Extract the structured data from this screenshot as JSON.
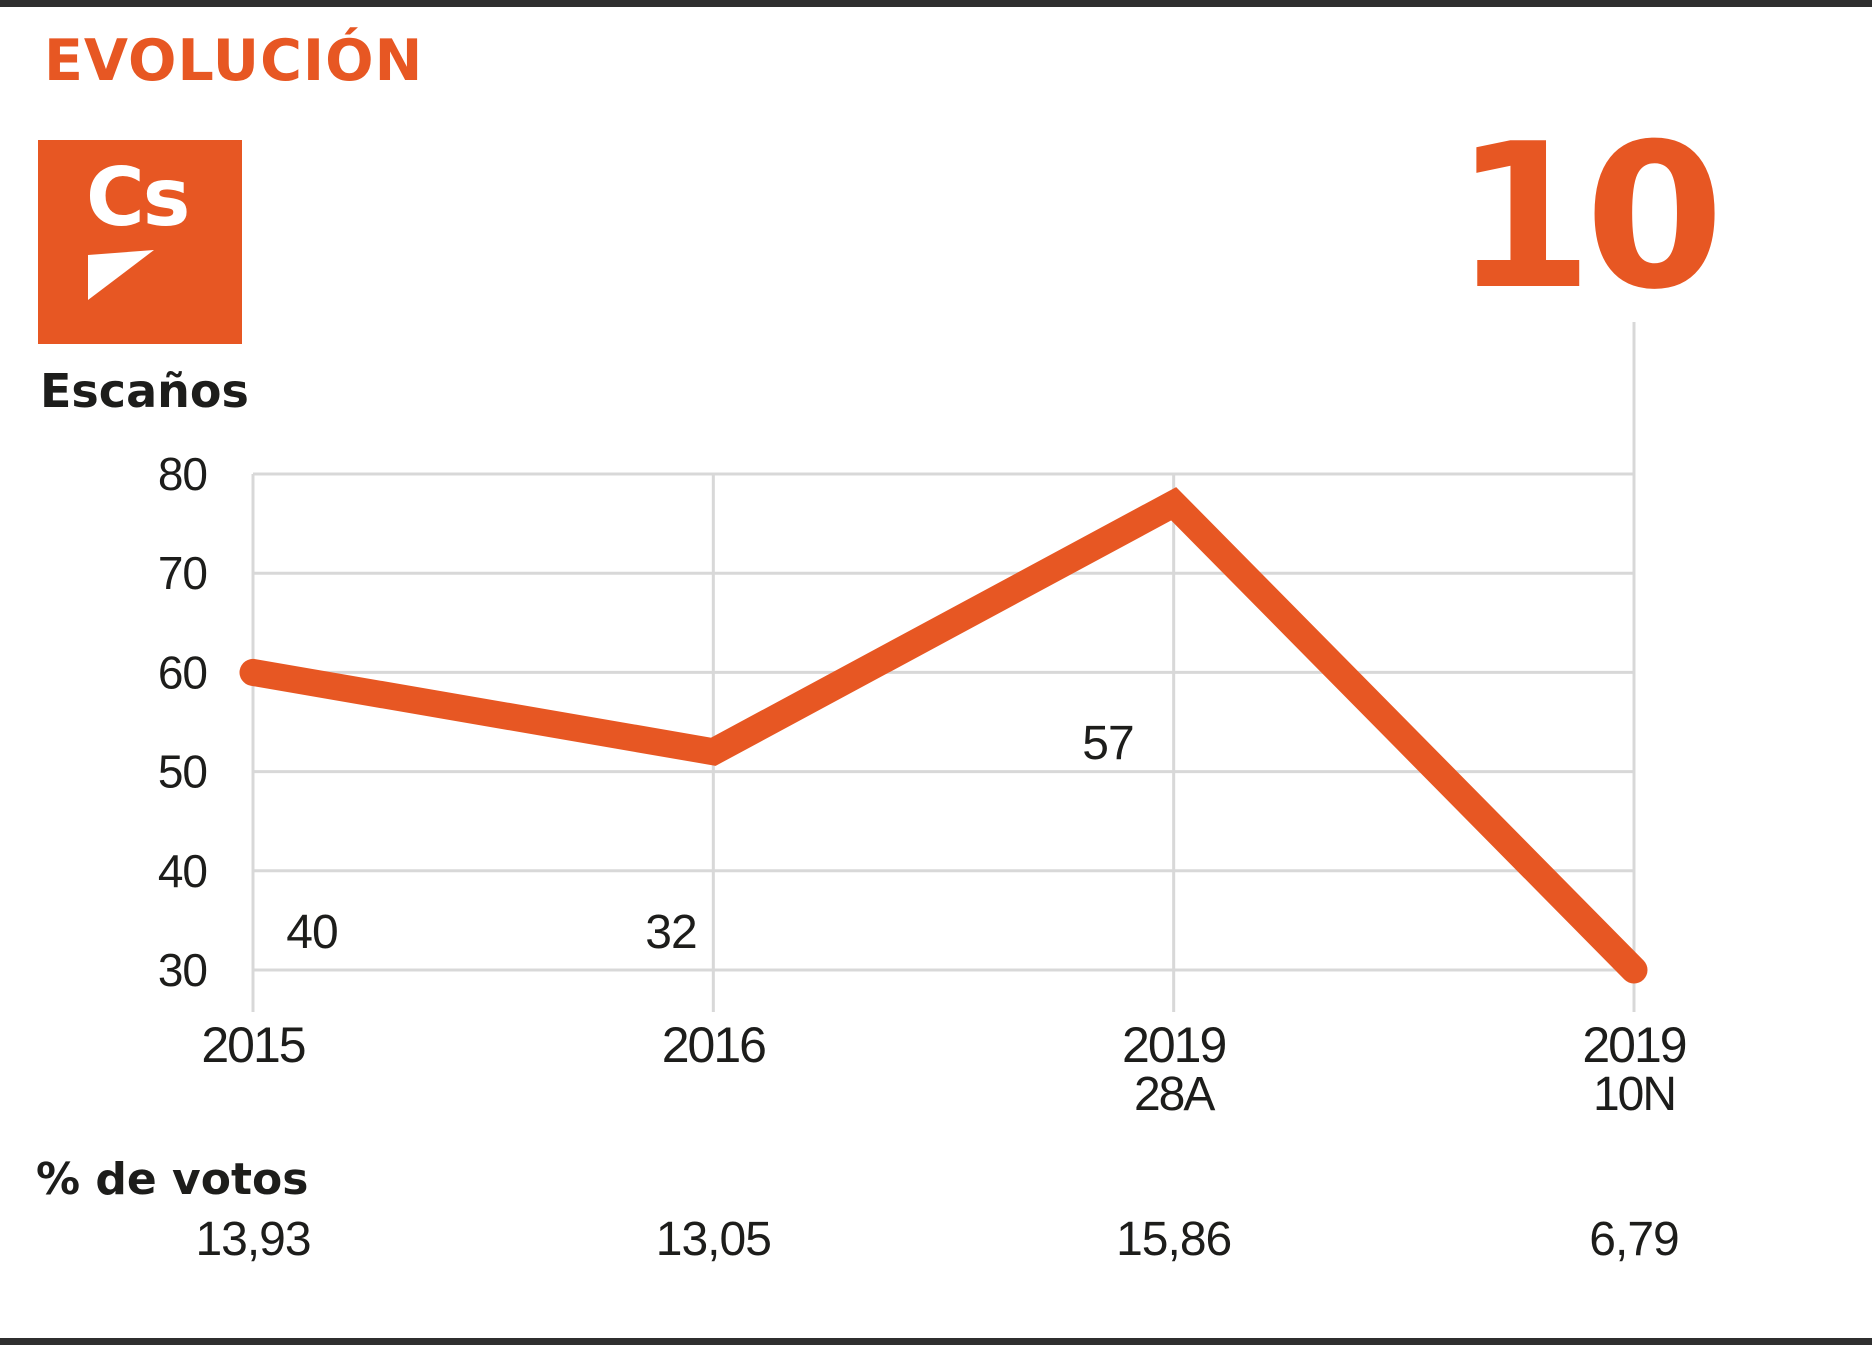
{
  "header": {
    "title": "EVOLUCIÓN"
  },
  "logo": {
    "text": "Cs"
  },
  "colors": {
    "accent": "#e75723",
    "text": "#1d1d1b",
    "grid": "#d8d8d8",
    "border": "#2f2f2f"
  },
  "chart_data": {
    "type": "line",
    "title": "Escaños",
    "categories": [
      {
        "label": "2015",
        "sublabel": ""
      },
      {
        "label": "2016",
        "sublabel": ""
      },
      {
        "label": "2019",
        "sublabel": "28A"
      },
      {
        "label": "2019",
        "sublabel": "10N"
      }
    ],
    "seats": [
      40,
      32,
      57,
      10
    ],
    "line_display_values": [
      60,
      52,
      77,
      30
    ],
    "yticks": [
      80,
      70,
      60,
      50,
      40,
      30
    ],
    "ylim": [
      30,
      80
    ],
    "grid": "on",
    "votes_label": "% de votos",
    "votes_pct": [
      "13,93",
      "13,05",
      "15,86",
      "6,79"
    ]
  }
}
